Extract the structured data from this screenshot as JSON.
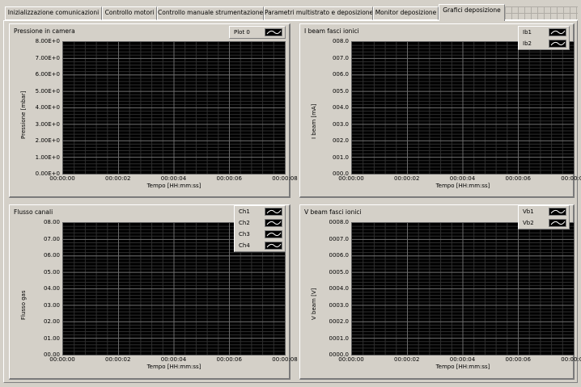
{
  "tabs": [
    {
      "label": "Inizializzazione comunicazioni",
      "active": false
    },
    {
      "label": "Controllo motori",
      "active": false
    },
    {
      "label": "Controllo manuale strumentazione",
      "active": false
    },
    {
      "label": "Parametri multistrato e deposizione",
      "active": false
    },
    {
      "label": "Monitor deposizione",
      "active": false
    },
    {
      "label": "Grafici deposizione",
      "active": true
    }
  ],
  "graphs": [
    {
      "title": "Pressione in camera",
      "ylabel": "Pressione [mbar]",
      "xlabel": "Tempo [HH:mm:ss]",
      "yticks": [
        "8.00E+0",
        "7.00E+0",
        "6.00E+0",
        "5.00E+0",
        "4.00E+0",
        "3.00E+0",
        "2.00E+0",
        "1.00E+0",
        "0.00E+0"
      ],
      "xticks": [
        "00:00:00",
        "00:00:02",
        "00:00:04",
        "00:00:06",
        "00:00:08"
      ],
      "legend": [
        "Plot 0"
      ],
      "chart_data": {
        "type": "line",
        "x_range": [
          "00:00:00",
          "00:00:08"
        ],
        "ylim": [
          0,
          8
        ],
        "grid": true,
        "series": []
      }
    },
    {
      "title": "I beam fasci ionici",
      "ylabel": "I beam [mA]",
      "xlabel": "Tempo [HH:mm:ss]",
      "yticks": [
        "008.0",
        "007.0",
        "006.0",
        "005.0",
        "004.0",
        "003.0",
        "002.0",
        "001.0",
        "000.0"
      ],
      "xticks": [
        "00:00:00",
        "00:00:02",
        "00:00:04",
        "00:00:06",
        "00:00:08"
      ],
      "legend": [
        "Ib1",
        "Ib2"
      ],
      "chart_data": {
        "type": "line",
        "x_range": [
          "00:00:00",
          "00:00:08"
        ],
        "ylim": [
          0,
          8
        ],
        "grid": true,
        "series": []
      }
    },
    {
      "title": "Flusso canali",
      "ylabel": "Flusso gas",
      "xlabel": "Tempo [HH:mm:ss]",
      "yticks": [
        "08.00",
        "07.00",
        "06.00",
        "05.00",
        "04.00",
        "03.00",
        "02.00",
        "01.00",
        "00.00"
      ],
      "xticks": [
        "00:00:00",
        "00:00:02",
        "00:00:04",
        "00:00:06",
        "00:00:08"
      ],
      "legend": [
        "Ch1",
        "Ch2",
        "Ch3",
        "Ch4"
      ],
      "chart_data": {
        "type": "line",
        "x_range": [
          "00:00:00",
          "00:00:08"
        ],
        "ylim": [
          0,
          8
        ],
        "grid": true,
        "series": []
      }
    },
    {
      "title": "V beam fasci ionici",
      "ylabel": "V beam [V]",
      "xlabel": "Tempo [HH:mm:ss]",
      "yticks": [
        "0008.0",
        "0007.0",
        "0006.0",
        "0005.0",
        "0004.0",
        "0003.0",
        "0002.0",
        "0001.0",
        "0000.0"
      ],
      "xticks": [
        "00:00:00",
        "00:00:02",
        "00:00:04",
        "00:00:06",
        "00:00:08"
      ],
      "legend": [
        "Vb1",
        "Vb2"
      ],
      "chart_data": {
        "type": "line",
        "x_range": [
          "00:00:00",
          "00:00:08"
        ],
        "ylim": [
          0,
          8
        ],
        "grid": true,
        "series": []
      }
    }
  ],
  "colors": {
    "plot_bg": "#000000",
    "grid": "#4a4a4a",
    "panel": "#d4d0c8"
  }
}
